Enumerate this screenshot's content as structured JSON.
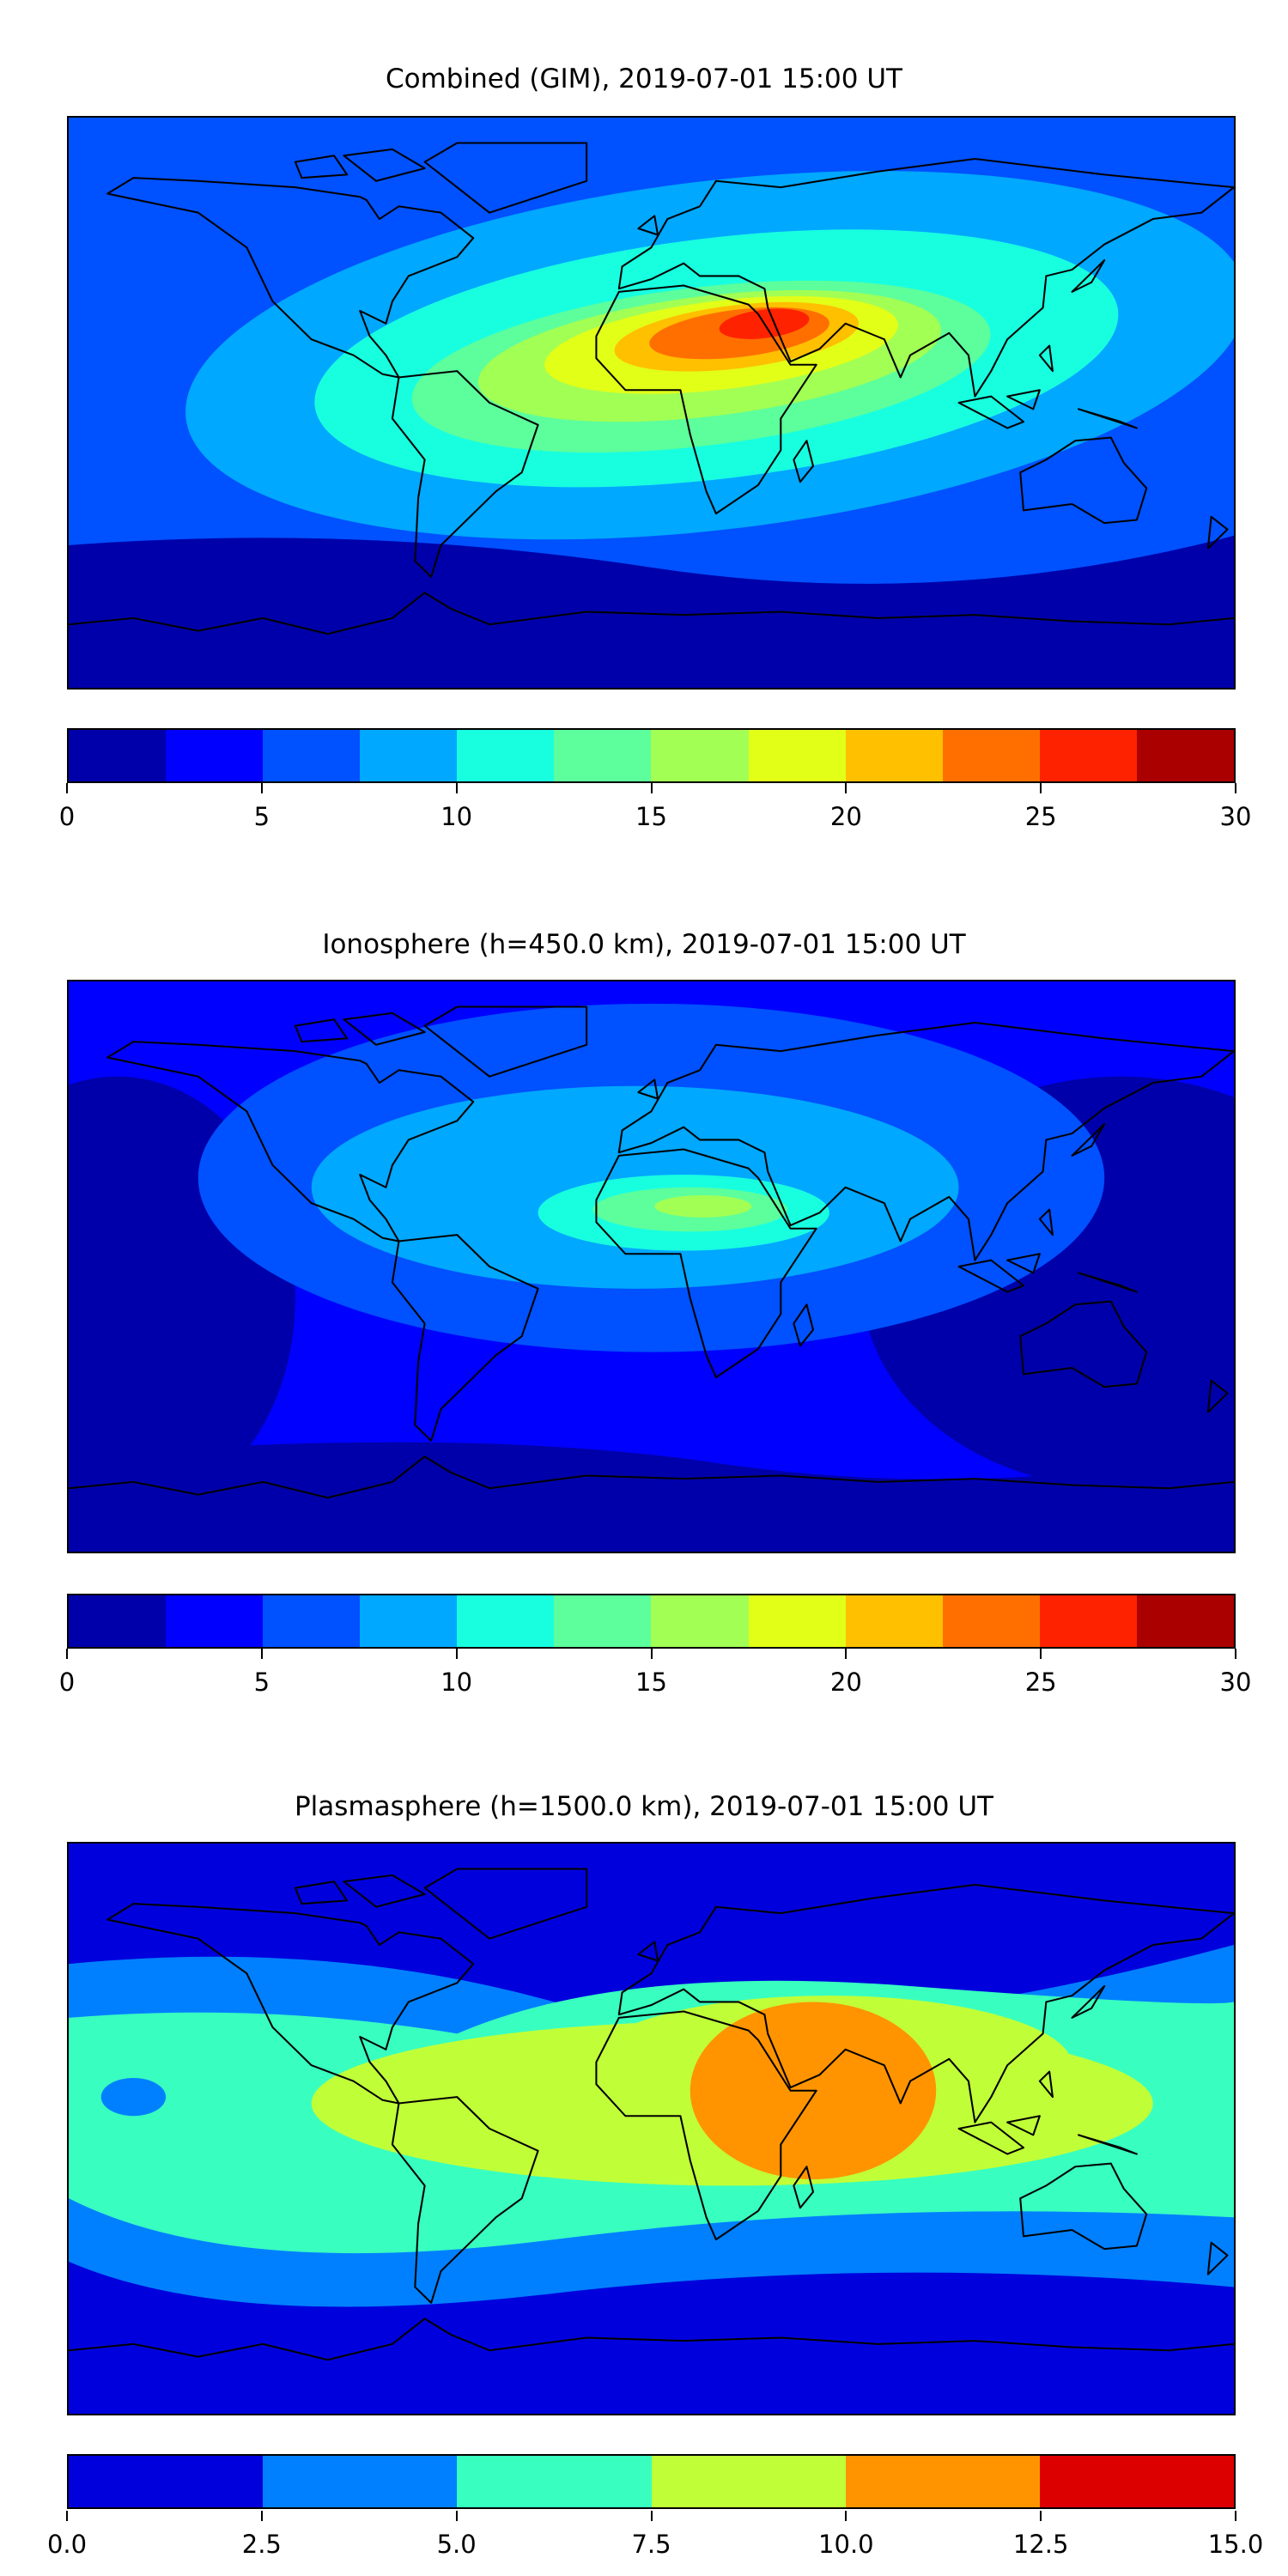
{
  "plots": [
    {
      "title": "Combined (GIM), 2019-07-01 15:00 UT",
      "colorbar": {
        "min": 0,
        "max": 30,
        "colors": [
          "#0000aa",
          "#0000ff",
          "#0051ff",
          "#00a8ff",
          "#18ffe0",
          "#5cff9c",
          "#a2ff54",
          "#e2ff18",
          "#ffc000",
          "#ff6f00",
          "#ff2200",
          "#aa0000"
        ],
        "ticks": [
          0,
          5,
          10,
          15,
          20,
          25,
          30
        ],
        "tick_labels": [
          "0",
          "5",
          "10",
          "15",
          "20",
          "25",
          "30"
        ]
      }
    },
    {
      "title": "Ionosphere  (h=450.0 km), 2019-07-01 15:00 UT",
      "colorbar": {
        "min": 0,
        "max": 30,
        "colors": [
          "#0000aa",
          "#0000ff",
          "#0051ff",
          "#00a8ff",
          "#18ffe0",
          "#5cff9c",
          "#a2ff54",
          "#e2ff18",
          "#ffc000",
          "#ff6f00",
          "#ff2200",
          "#aa0000"
        ],
        "ticks": [
          0,
          5,
          10,
          15,
          20,
          25,
          30
        ],
        "tick_labels": [
          "0",
          "5",
          "10",
          "15",
          "20",
          "25",
          "30"
        ]
      }
    },
    {
      "title": "Plasmasphere (h=1500.0 km), 2019-07-01 15:00 UT",
      "colorbar": {
        "min": 0,
        "max": 15,
        "colors": [
          "#0000dd",
          "#0080ff",
          "#38ffc0",
          "#c0ff38",
          "#ff9400",
          "#dd0000"
        ],
        "ticks": [
          0,
          2.5,
          5,
          7.5,
          10,
          12.5,
          15
        ],
        "tick_labels": [
          "0.0",
          "2.5",
          "5.0",
          "7.5",
          "10.0",
          "12.5",
          "15.0"
        ]
      }
    }
  ],
  "chart_data": [
    {
      "type": "heatmap",
      "title": "Combined (GIM), 2019-07-01 15:00 UT",
      "colorbar_range": [
        0,
        30
      ],
      "levels": [
        0,
        2.5,
        5,
        7.5,
        10,
        12.5,
        15,
        17.5,
        20,
        22.5,
        25,
        27.5,
        30
      ],
      "peak_region": "North Africa / Sahara, 25-27.5"
    },
    {
      "type": "heatmap",
      "title": "Ionosphere  (h=450.0 km), 2019-07-01 15:00 UT",
      "colorbar_range": [
        0,
        30
      ],
      "levels": [
        0,
        2.5,
        5,
        7.5,
        10,
        12.5,
        15,
        17.5,
        20,
        22.5,
        25,
        27.5,
        30
      ],
      "peak_region": "West Africa, 15-17.5"
    },
    {
      "type": "heatmap",
      "title": "Plasmasphere (h=1500.0 km), 2019-07-01 15:00 UT",
      "colorbar_range": [
        0,
        15
      ],
      "levels": [
        0,
        2.5,
        5,
        7.5,
        10,
        12.5,
        15
      ],
      "peak_region": "Arabian Sea / East Africa, 10-12.5"
    }
  ]
}
